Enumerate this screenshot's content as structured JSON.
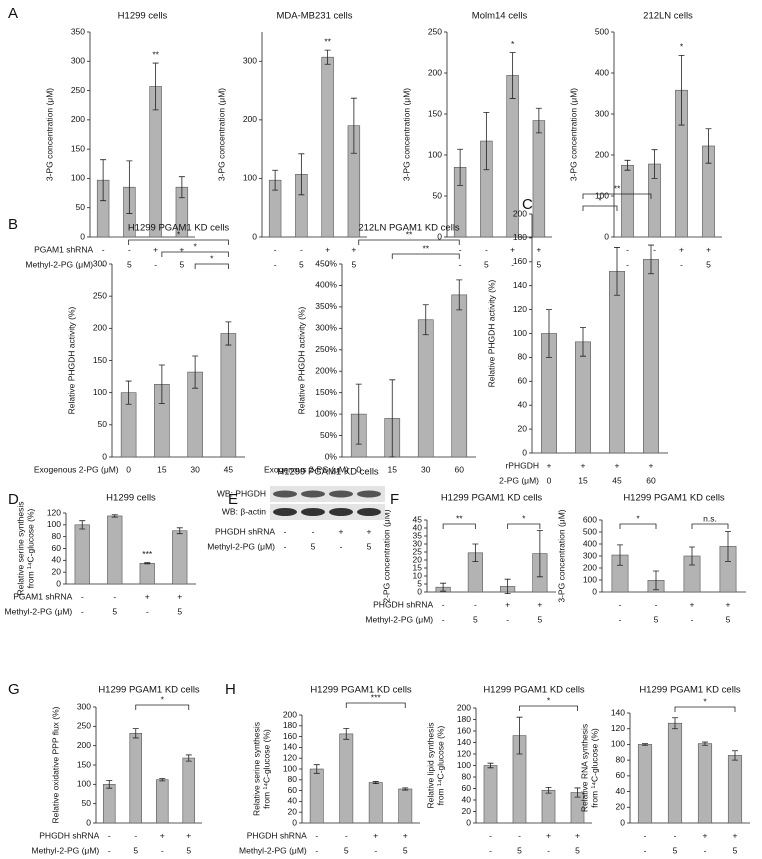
{
  "chart_data": [
    {
      "type": "bar",
      "panel": "A",
      "title": "H1299 cells",
      "ylabel": [
        "3-PG concentration (μM)"
      ],
      "color": "#b3b3b3",
      "values": [
        97,
        85,
        257,
        85
      ],
      "errors": [
        35,
        45,
        40,
        18
      ],
      "ylim": [
        0,
        350
      ],
      "yticks": [
        0,
        50,
        100,
        150,
        200,
        250,
        300,
        350
      ],
      "annotations": [
        {
          "bar": 2,
          "text": "**"
        }
      ],
      "brackets": [],
      "conditions": [
        {
          "label": "PGAM1 shRNA",
          "values": [
            "-",
            "-",
            "+",
            "+"
          ]
        },
        {
          "label": "Methyl-2-PG (μM)",
          "values": [
            "-",
            "5",
            "-",
            "5"
          ]
        }
      ]
    },
    {
      "type": "bar",
      "title": "MDA-MB231 cells",
      "ylabel": [
        "3-PG concentration (μM)"
      ],
      "color": "#b3b3b3",
      "values": [
        97,
        107,
        307,
        190
      ],
      "errors": [
        17,
        35,
        12,
        47
      ],
      "ylim": [
        0,
        350
      ],
      "yticks": [
        0,
        100,
        200,
        300
      ],
      "annotations": [
        {
          "bar": 2,
          "text": "**"
        }
      ],
      "brackets": [],
      "conditions": [
        {
          "values": [
            "-",
            "-",
            "+",
            "+"
          ]
        },
        {
          "values": [
            "-",
            "5",
            "-",
            "5"
          ]
        }
      ]
    },
    {
      "type": "bar",
      "title": "Molm14 cells",
      "ylabel": [
        "3-PG concentration (μM)"
      ],
      "color": "#b3b3b3",
      "values": [
        85,
        117,
        197,
        142
      ],
      "errors": [
        22,
        35,
        28,
        15
      ],
      "ylim": [
        0,
        250
      ],
      "yticks": [
        0,
        50,
        100,
        150,
        200,
        250
      ],
      "annotations": [
        {
          "bar": 2,
          "text": "*"
        }
      ],
      "brackets": [],
      "conditions": [
        {
          "values": [
            "-",
            "-",
            "+",
            "+"
          ]
        },
        {
          "values": [
            "-",
            "5",
            "-",
            "5"
          ]
        }
      ]
    },
    {
      "type": "bar",
      "title": "212LN cells",
      "ylabel": [
        "3-PG concentration (μM)"
      ],
      "color": "#b3b3b3",
      "values": [
        175,
        178,
        358,
        222
      ],
      "errors": [
        12,
        35,
        85,
        42
      ],
      "ylim": [
        0,
        500
      ],
      "yticks": [
        0,
        100,
        200,
        300,
        400,
        500
      ],
      "annotations": [
        {
          "bar": 2,
          "text": "*"
        }
      ],
      "brackets": [],
      "conditions": [
        {
          "values": [
            "-",
            "-",
            "+",
            "+"
          ]
        },
        {
          "values": [
            "-",
            "5",
            "-",
            "5"
          ]
        }
      ]
    },
    {
      "type": "bar",
      "panel": "B",
      "title": "H1299 PGAM1 KD cells",
      "ylabel": [
        "Relative PHGDH activity (%)"
      ],
      "color": "#b3b3b3",
      "values": [
        100,
        113,
        132,
        192
      ],
      "errors": [
        18,
        30,
        25,
        18
      ],
      "ylim": [
        0,
        300
      ],
      "yticks": [
        0,
        50,
        100,
        150,
        200,
        250,
        300
      ],
      "annotations": [],
      "brackets": [
        {
          "from": 0,
          "to": 3,
          "text": "*"
        },
        {
          "from": 1,
          "to": 3,
          "text": "*"
        },
        {
          "from": 2,
          "to": 3,
          "text": "*"
        }
      ],
      "conditions": [
        {
          "label": "Exogenous 2-PG  (μM)",
          "values": [
            "0",
            "15",
            "30",
            "45"
          ]
        }
      ]
    },
    {
      "type": "bar",
      "title": "212LN PGAM1 KD cells",
      "ylabel": [
        "Relative PHGDH activity (%)"
      ],
      "color": "#b3b3b3",
      "values": [
        100,
        90,
        320,
        378
      ],
      "errors": [
        70,
        90,
        35,
        35
      ],
      "ylim": [
        0,
        450
      ],
      "yticks": [
        {
          "value": 0,
          "label": "0%"
        },
        {
          "value": 50,
          "label": "50%"
        },
        {
          "value": 100,
          "label": "100%"
        },
        {
          "value": 150,
          "label": "150%"
        },
        {
          "value": 200,
          "label": "200%"
        },
        {
          "value": 250,
          "label": "250%"
        },
        {
          "value": 300,
          "label": "300%"
        },
        {
          "value": 350,
          "label": "350%"
        },
        {
          "value": 400,
          "label": "400%"
        },
        {
          "value": 450,
          "label": "450%"
        }
      ],
      "annotations": [],
      "brackets": [
        {
          "from": 0,
          "to": 3,
          "text": "**"
        },
        {
          "from": 1,
          "to": 3,
          "text": "**"
        }
      ],
      "conditions": [
        {
          "label": "Exogenous 2-PG  (μM)",
          "values": [
            "0",
            "15",
            "30",
            "60"
          ]
        }
      ]
    },
    {
      "type": "bar",
      "panel": "C",
      "ylabel": [
        "Relative PHGDH activity (%)"
      ],
      "color": "#b3b3b3",
      "values": [
        100,
        93,
        152,
        162
      ],
      "errors": [
        20,
        12,
        20,
        12
      ],
      "ylim": [
        0,
        200
      ],
      "yticks": [
        0,
        20,
        40,
        60,
        80,
        100,
        120,
        140,
        160,
        180,
        200
      ],
      "annotations": [],
      "brackets": [
        {
          "from": 1,
          "to": 3,
          "text": "**"
        },
        {
          "from": 1,
          "to": 2,
          "text": "*"
        }
      ],
      "conditions": [
        {
          "label": "rPHGDH",
          "values": [
            "+",
            "+",
            "+",
            "+"
          ]
        },
        {
          "label": "2-PG (μM)",
          "values": [
            "0",
            "15",
            "45",
            "60"
          ]
        }
      ]
    },
    {
      "type": "bar",
      "panel": "D",
      "title": "H1299 cells",
      "ylabel": [
        "Relative serine synthesis",
        "from ¹⁴C-glucose (%)"
      ],
      "color": "#b3b3b3",
      "values": [
        100,
        115,
        35,
        90
      ],
      "errors": [
        7,
        2,
        1,
        5
      ],
      "ylim": [
        0,
        120
      ],
      "yticks": [
        0,
        20,
        40,
        60,
        80,
        100,
        120
      ],
      "annotations": [
        {
          "bar": 2,
          "text": "***"
        }
      ],
      "brackets": [],
      "conditions": [
        {
          "label": "PGAM1 shRNA",
          "values": [
            "-",
            "-",
            "+",
            "+"
          ]
        },
        {
          "label": "Methyl-2-PG (μM)",
          "values": [
            "-",
            "5",
            "-",
            "5"
          ]
        }
      ]
    },
    {
      "type": "bar",
      "panel": "F",
      "title": "H1299 PGAM1 KD cells",
      "ylabel": [
        "2-PG concentration (μM)"
      ],
      "color": "#b3b3b3",
      "values": [
        3,
        24.5,
        3.5,
        24
      ],
      "errors": [
        2.5,
        5.5,
        4.5,
        14.5
      ],
      "ylim": [
        0,
        45
      ],
      "yticks": [
        0,
        5,
        10,
        15,
        20,
        25,
        30,
        35,
        40,
        45
      ],
      "annotations": [],
      "brackets": [
        {
          "from": 0,
          "to": 1,
          "text": "**"
        },
        {
          "from": 2,
          "to": 3,
          "text": "*"
        }
      ],
      "conditions": [
        {
          "label": "PHGDH shRNA",
          "values": [
            "-",
            "-",
            "+",
            "+"
          ]
        },
        {
          "label": "Methyl-2-PG (μM)",
          "values": [
            "-",
            "5",
            "-",
            "5"
          ]
        }
      ]
    },
    {
      "type": "bar",
      "title": "H1299 PGAM1 KD cells",
      "ylabel": [
        "3-PG concentration (μM)"
      ],
      "color": "#b3b3b3",
      "values": [
        308,
        97,
        300,
        380
      ],
      "errors": [
        85,
        78,
        75,
        125
      ],
      "ylim": [
        0,
        600
      ],
      "yticks": [
        0,
        100,
        200,
        300,
        400,
        500,
        600
      ],
      "annotations": [],
      "brackets": [
        {
          "from": 0,
          "to": 1,
          "text": "*"
        },
        {
          "from": 2,
          "to": 3,
          "text": "n.s."
        }
      ],
      "conditions": [
        {
          "values": [
            "-",
            "-",
            "+",
            "+"
          ]
        },
        {
          "values": [
            "-",
            "5",
            "-",
            "5"
          ]
        }
      ]
    },
    {
      "type": "bar",
      "panel": "G",
      "title": "H1299 PGAM1 KD cells",
      "ylabel": [
        "Relative oxidative PPP flux (%)"
      ],
      "color": "#b3b3b3",
      "values": [
        100,
        232,
        112,
        168
      ],
      "errors": [
        10,
        12,
        3,
        8
      ],
      "ylim": [
        0,
        300
      ],
      "yticks": [
        0,
        50,
        100,
        150,
        200,
        250,
        300
      ],
      "annotations": [],
      "brackets": [
        {
          "from": 1,
          "to": 3,
          "text": "*"
        }
      ],
      "conditions": [
        {
          "label": "PHGDH shRNA",
          "values": [
            "-",
            "-",
            "+",
            "+"
          ]
        },
        {
          "label": "Methyl-2-PG (μM)",
          "values": [
            "-",
            "5",
            "-",
            "5"
          ]
        }
      ]
    },
    {
      "type": "bar",
      "panel": "H",
      "title": "H1299 PGAM1 KD cells",
      "ylabel": [
        "Relative serine synthesis",
        "from ¹⁴C-glucose (%)"
      ],
      "color": "#b3b3b3",
      "values": [
        100,
        165,
        75,
        63
      ],
      "errors": [
        8,
        10,
        2,
        2
      ],
      "ylim": [
        0,
        200
      ],
      "yticks": [
        0,
        20,
        40,
        60,
        80,
        100,
        120,
        140,
        160,
        180,
        200
      ],
      "annotations": [],
      "brackets": [
        {
          "from": 1,
          "to": 3,
          "text": "***"
        }
      ],
      "conditions": [
        {
          "label": "PHGDH shRNA",
          "values": [
            "-",
            "-",
            "+",
            "+"
          ]
        },
        {
          "label": "Methyl-2-PG (μM)",
          "values": [
            "-",
            "5",
            "-",
            "5"
          ]
        }
      ]
    },
    {
      "type": "bar",
      "title": "H1299 PGAM1 KD cells",
      "ylabel": [
        "Relative lipid synthesis",
        "from ¹⁴C-glucose (%)"
      ],
      "color": "#b3b3b3",
      "values": [
        100,
        152,
        57,
        53
      ],
      "errors": [
        4,
        32,
        5,
        8
      ],
      "ylim": [
        0,
        200
      ],
      "yticks": [
        0,
        20,
        40,
        60,
        80,
        100,
        120,
        140,
        160,
        180,
        200
      ],
      "annotations": [],
      "brackets": [
        {
          "from": 1,
          "to": 3,
          "text": "*"
        }
      ],
      "conditions": [
        {
          "values": [
            "-",
            "-",
            "+",
            "+"
          ]
        },
        {
          "values": [
            "-",
            "5",
            "-",
            "5"
          ]
        }
      ]
    },
    {
      "type": "bar",
      "title": "H1299 PGAM1 KD cells",
      "ylabel": [
        "Relative RNA synthesis",
        "from ¹⁴C-glucose (%)"
      ],
      "color": "#b3b3b3",
      "values": [
        100,
        127,
        101,
        86
      ],
      "errors": [
        1,
        7,
        2,
        6
      ],
      "ylim": [
        0,
        140
      ],
      "yticks": [
        0,
        20,
        40,
        60,
        80,
        100,
        120,
        140
      ],
      "annotations": [],
      "brackets": [
        {
          "from": 1,
          "to": 3,
          "text": "*"
        }
      ],
      "conditions": [
        {
          "values": [
            "-",
            "-",
            "+",
            "+"
          ]
        },
        {
          "values": [
            "-",
            "5",
            "-",
            "5"
          ]
        }
      ]
    }
  ],
  "blot": {
    "panel": "E",
    "title": "H1299 PGAM1 KD cells",
    "rows": [
      "WB: PHGDH",
      "WB: β-actin"
    ],
    "conditions": [
      {
        "label": "PHGDH shRNA",
        "values": [
          "-",
          "-",
          "+",
          "+"
        ]
      },
      {
        "label": "Methyl-2-PG (μM)",
        "values": [
          "-",
          "5",
          "-",
          "5"
        ]
      }
    ]
  }
}
